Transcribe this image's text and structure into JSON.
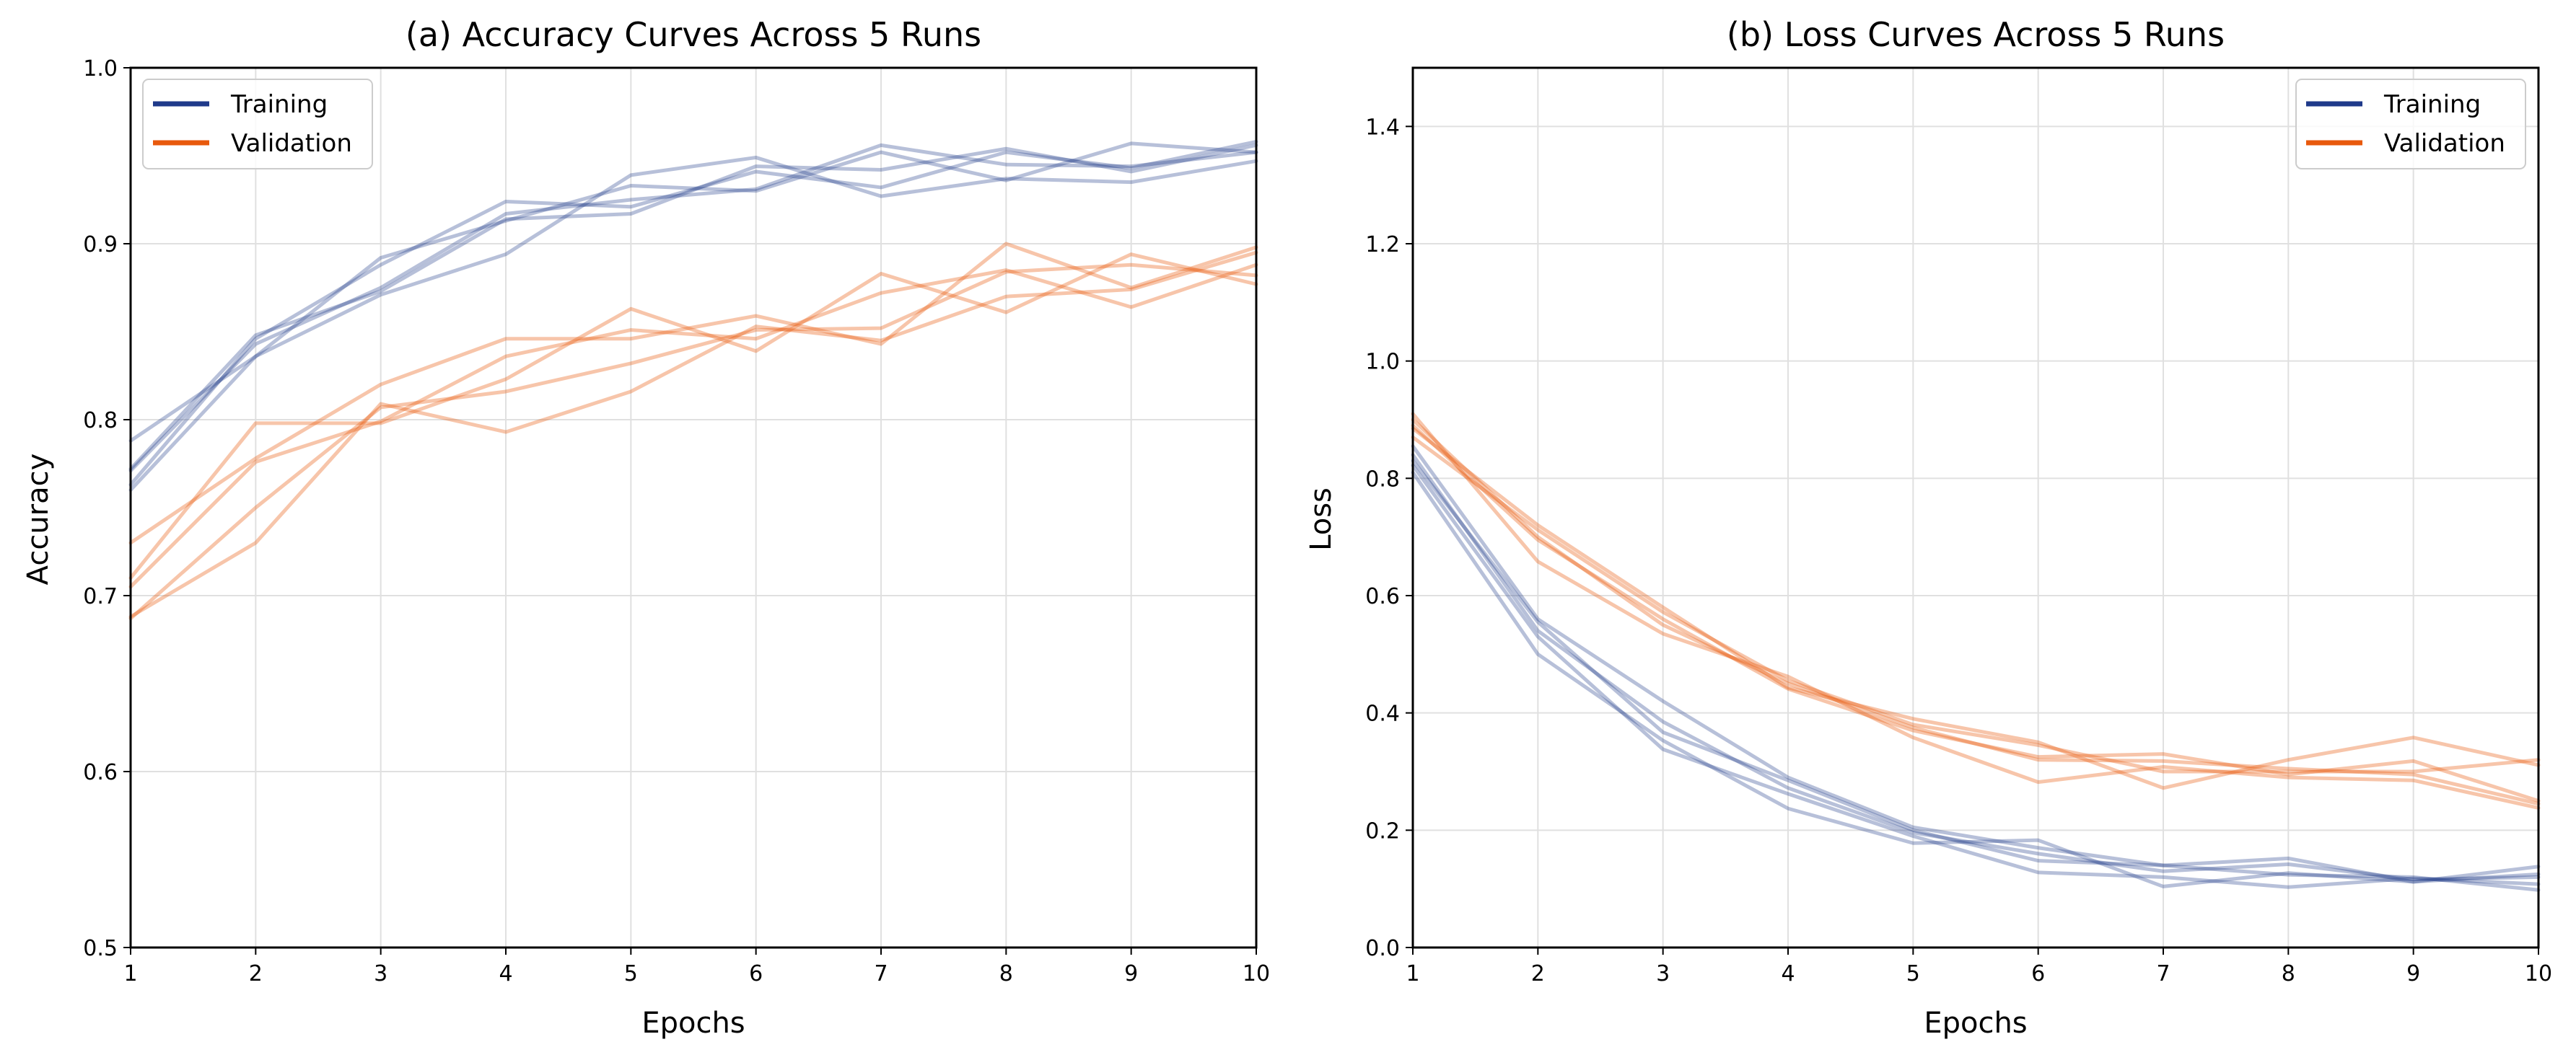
{
  "colors": {
    "training": "#1f3a8a",
    "validation": "#e8590c",
    "grid": "#e0e0e0"
  },
  "chart_data": [
    {
      "type": "line",
      "title": "(a) Accuracy Curves Across 5 Runs",
      "xlabel": "Epochs",
      "ylabel": "Accuracy",
      "xlim": [
        1,
        10
      ],
      "ylim": [
        0.5,
        1.0
      ],
      "xticks": [
        "1",
        "2",
        "3",
        "4",
        "5",
        "6",
        "7",
        "8",
        "9",
        "10"
      ],
      "yticks": [
        "0.5",
        "0.6",
        "0.7",
        "0.8",
        "0.9",
        "1.0"
      ],
      "grid": true,
      "legend": {
        "position": "top-left",
        "entries": [
          "Training",
          "Validation"
        ]
      },
      "x": [
        1,
        2,
        3,
        4,
        5,
        6,
        7,
        8,
        9,
        10
      ],
      "series": [
        {
          "group": "Training",
          "values": [
            0.772,
            0.848,
            0.873,
            0.914,
            0.917,
            0.944,
            0.942,
            0.954,
            0.941,
            0.956
          ]
        },
        {
          "group": "Training",
          "values": [
            0.76,
            0.836,
            0.892,
            0.913,
            0.933,
            0.93,
            0.952,
            0.936,
            0.957,
            0.952
          ]
        },
        {
          "group": "Training",
          "values": [
            0.763,
            0.846,
            0.888,
            0.924,
            0.921,
            0.941,
            0.932,
            0.952,
            0.943,
            0.958
          ]
        },
        {
          "group": "Training",
          "values": [
            0.788,
            0.836,
            0.871,
            0.894,
            0.939,
            0.949,
            0.927,
            0.937,
            0.935,
            0.947
          ]
        },
        {
          "group": "Training",
          "values": [
            0.771,
            0.843,
            0.875,
            0.917,
            0.925,
            0.931,
            0.956,
            0.945,
            0.944,
            0.952
          ]
        },
        {
          "group": "Validation",
          "values": [
            0.73,
            0.778,
            0.82,
            0.846,
            0.846,
            0.859,
            0.843,
            0.9,
            0.875,
            0.898
          ]
        },
        {
          "group": "Validation",
          "values": [
            0.71,
            0.798,
            0.798,
            0.823,
            0.863,
            0.839,
            0.883,
            0.861,
            0.894,
            0.877
          ]
        },
        {
          "group": "Validation",
          "values": [
            0.688,
            0.73,
            0.809,
            0.793,
            0.816,
            0.853,
            0.845,
            0.87,
            0.874,
            0.895
          ]
        },
        {
          "group": "Validation",
          "values": [
            0.705,
            0.776,
            0.799,
            0.836,
            0.851,
            0.846,
            0.872,
            0.885,
            0.864,
            0.888
          ]
        },
        {
          "group": "Validation",
          "values": [
            0.687,
            0.75,
            0.807,
            0.816,
            0.832,
            0.851,
            0.852,
            0.884,
            0.888,
            0.882
          ]
        }
      ]
    },
    {
      "type": "line",
      "title": "(b) Loss Curves Across 5 Runs",
      "xlabel": "Epochs",
      "ylabel": "Loss",
      "xlim": [
        1,
        10
      ],
      "ylim": [
        0.0,
        1.5
      ],
      "xticks": [
        "1",
        "2",
        "3",
        "4",
        "5",
        "6",
        "7",
        "8",
        "9",
        "10"
      ],
      "yticks": [
        "0.0",
        "0.2",
        "0.4",
        "0.6",
        "0.8",
        "1.0",
        "1.2",
        "1.4"
      ],
      "grid": true,
      "legend": {
        "position": "top-right",
        "entries": [
          "Training",
          "Validation"
        ]
      },
      "x": [
        1,
        2,
        3,
        4,
        5,
        6,
        7,
        8,
        9,
        10
      ],
      "series": [
        {
          "group": "Training",
          "values": [
            0.83,
            0.555,
            0.367,
            0.285,
            0.2,
            0.148,
            0.14,
            0.124,
            0.12,
            0.098
          ]
        },
        {
          "group": "Training",
          "values": [
            0.81,
            0.5,
            0.353,
            0.237,
            0.178,
            0.183,
            0.104,
            0.127,
            0.112,
            0.138
          ]
        },
        {
          "group": "Training",
          "values": [
            0.855,
            0.56,
            0.42,
            0.29,
            0.205,
            0.17,
            0.14,
            0.152,
            0.112,
            0.125
          ]
        },
        {
          "group": "Training",
          "values": [
            0.822,
            0.53,
            0.338,
            0.262,
            0.19,
            0.128,
            0.12,
            0.103,
            0.118,
            0.108
          ]
        },
        {
          "group": "Training",
          "values": [
            0.84,
            0.54,
            0.385,
            0.272,
            0.196,
            0.16,
            0.13,
            0.142,
            0.116,
            0.12
          ]
        },
        {
          "group": "Validation",
          "values": [
            0.885,
            0.72,
            0.58,
            0.443,
            0.39,
            0.35,
            0.272,
            0.32,
            0.358,
            0.311
          ]
        },
        {
          "group": "Validation",
          "values": [
            0.91,
            0.658,
            0.535,
            0.462,
            0.358,
            0.282,
            0.308,
            0.29,
            0.285,
            0.238
          ]
        },
        {
          "group": "Validation",
          "values": [
            0.89,
            0.695,
            0.56,
            0.441,
            0.37,
            0.325,
            0.33,
            0.295,
            0.318,
            0.25
          ]
        },
        {
          "group": "Validation",
          "values": [
            0.87,
            0.712,
            0.572,
            0.455,
            0.38,
            0.345,
            0.3,
            0.3,
            0.3,
            0.32
          ]
        },
        {
          "group": "Validation",
          "values": [
            0.9,
            0.7,
            0.55,
            0.45,
            0.375,
            0.32,
            0.318,
            0.305,
            0.295,
            0.245
          ]
        }
      ]
    }
  ]
}
